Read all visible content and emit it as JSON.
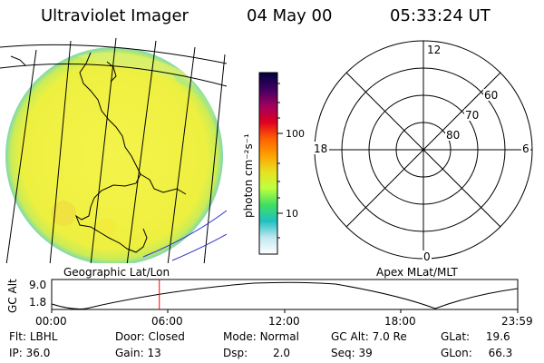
{
  "header": {
    "instrument": "Ultraviolet Imager",
    "date": "04 May 00",
    "time": "05:33:24 UT"
  },
  "colors": {
    "earth_disk": "#eef040",
    "limb": "#8fd8a0",
    "grid_line": "#000000",
    "time_marker": "#ff0000",
    "blue_line": "#3333cc"
  },
  "colorbar": {
    "unit_label": "photon cm⁻²s⁻¹",
    "tick_labels": [
      "100",
      "10"
    ],
    "stops": [
      "#000040",
      "#400060",
      "#a00060",
      "#e00020",
      "#ff6000",
      "#ffa000",
      "#e8e020",
      "#c0ff40",
      "#40e060",
      "#20c0c0",
      "#c0e8f0",
      "#ffffff"
    ]
  },
  "labels": {
    "geo_coords": "Geographic Lat/Lon",
    "apex_coords": "Apex MLat/MLT"
  },
  "polar_plot": {
    "mlt_labels": [
      "12",
      "18",
      "6",
      "0"
    ],
    "lat_labels": [
      "60",
      "70",
      "80"
    ]
  },
  "altitude_plot": {
    "ylabel": "GC Alt",
    "y_tick_labels": [
      "9.0",
      "1.8"
    ],
    "x_tick_labels": [
      "00:00",
      "06:00",
      "12:00",
      "18:00",
      "23:59"
    ],
    "current_time_fraction": 0.231
  },
  "info": {
    "rows": [
      [
        {
          "label": "Flt:",
          "value": "LBHL"
        },
        {
          "label": "Door:",
          "value": "Closed"
        },
        {
          "label": "Mode:",
          "value": "Normal"
        },
        {
          "label": "GC Alt:",
          "value": "7.0 Re"
        },
        {
          "label": "GLat:",
          "value": "19.6"
        }
      ],
      [
        {
          "label": "IP:",
          "value": "36.0"
        },
        {
          "label": "Gain:",
          "value": "13"
        },
        {
          "label": "Dsp:",
          "value": "2.0"
        },
        {
          "label": "Seq:",
          "value": "39"
        },
        {
          "label": "GLon:",
          "value": "66.3"
        }
      ]
    ]
  }
}
